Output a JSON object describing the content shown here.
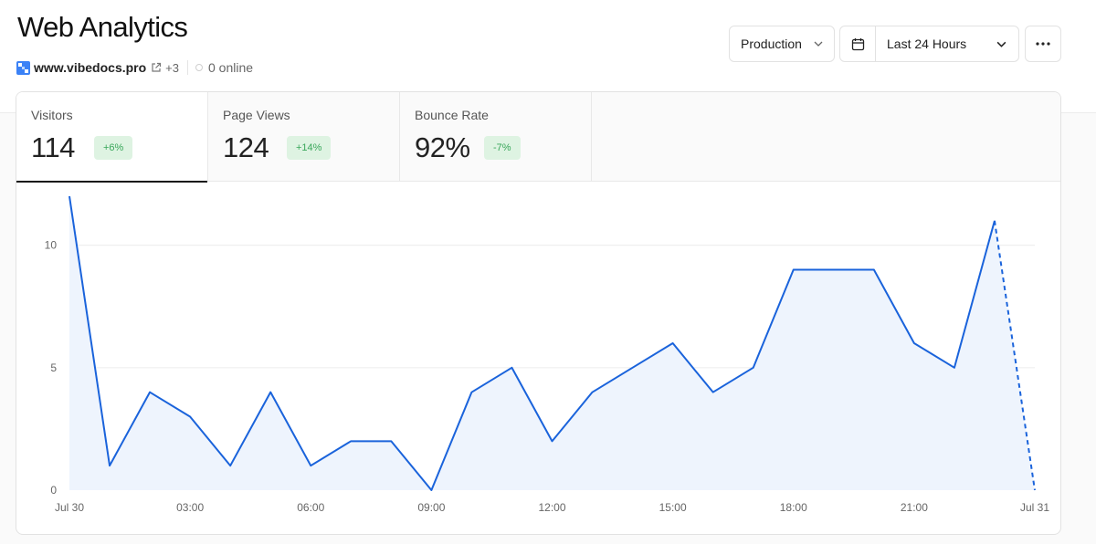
{
  "header": {
    "title": "Web Analytics",
    "site_name": "www.vibedocs.pro",
    "extra_sites": "+3",
    "online": "0 online"
  },
  "controls": {
    "environment": "Production",
    "date_range": "Last 24 Hours"
  },
  "tabs": [
    {
      "label": "Visitors",
      "value": "114",
      "change": "+6%"
    },
    {
      "label": "Page Views",
      "value": "124",
      "change": "+14%"
    },
    {
      "label": "Bounce Rate",
      "value": "92%",
      "change": "-7%"
    }
  ],
  "colors": {
    "line": "#1a63db",
    "area": "#eef4fd",
    "badge_bg": "#def3e2",
    "badge_text": "#39a75a"
  },
  "icons": [
    "site-favicon-icon",
    "external-link-icon",
    "chevron-down-icon",
    "calendar-icon",
    "more-horizontal-icon"
  ],
  "chart_data": {
    "type": "area",
    "x": [
      "Jul 30 00:00",
      "01:00",
      "02:00",
      "03:00",
      "04:00",
      "05:00",
      "06:00",
      "07:00",
      "08:00",
      "09:00",
      "10:00",
      "11:00",
      "12:00",
      "13:00",
      "14:00",
      "15:00",
      "16:00",
      "17:00",
      "18:00",
      "19:00",
      "20:00",
      "21:00",
      "22:00",
      "23:00",
      "Jul 31 00:00"
    ],
    "series": [
      {
        "values": [
          12,
          1,
          4,
          3,
          1,
          4,
          1,
          2,
          2,
          0,
          4,
          5,
          2,
          4,
          5,
          6,
          4,
          5,
          9,
          9,
          9,
          6,
          5,
          11,
          0
        ]
      }
    ],
    "dashed_last_segment": true,
    "x_tick_labels": [
      "Jul 30",
      "03:00",
      "06:00",
      "09:00",
      "12:00",
      "15:00",
      "18:00",
      "21:00",
      "Jul 31"
    ],
    "y_ticks": [
      0,
      5,
      10
    ],
    "ylim": [
      0,
      12
    ],
    "grid": true
  }
}
